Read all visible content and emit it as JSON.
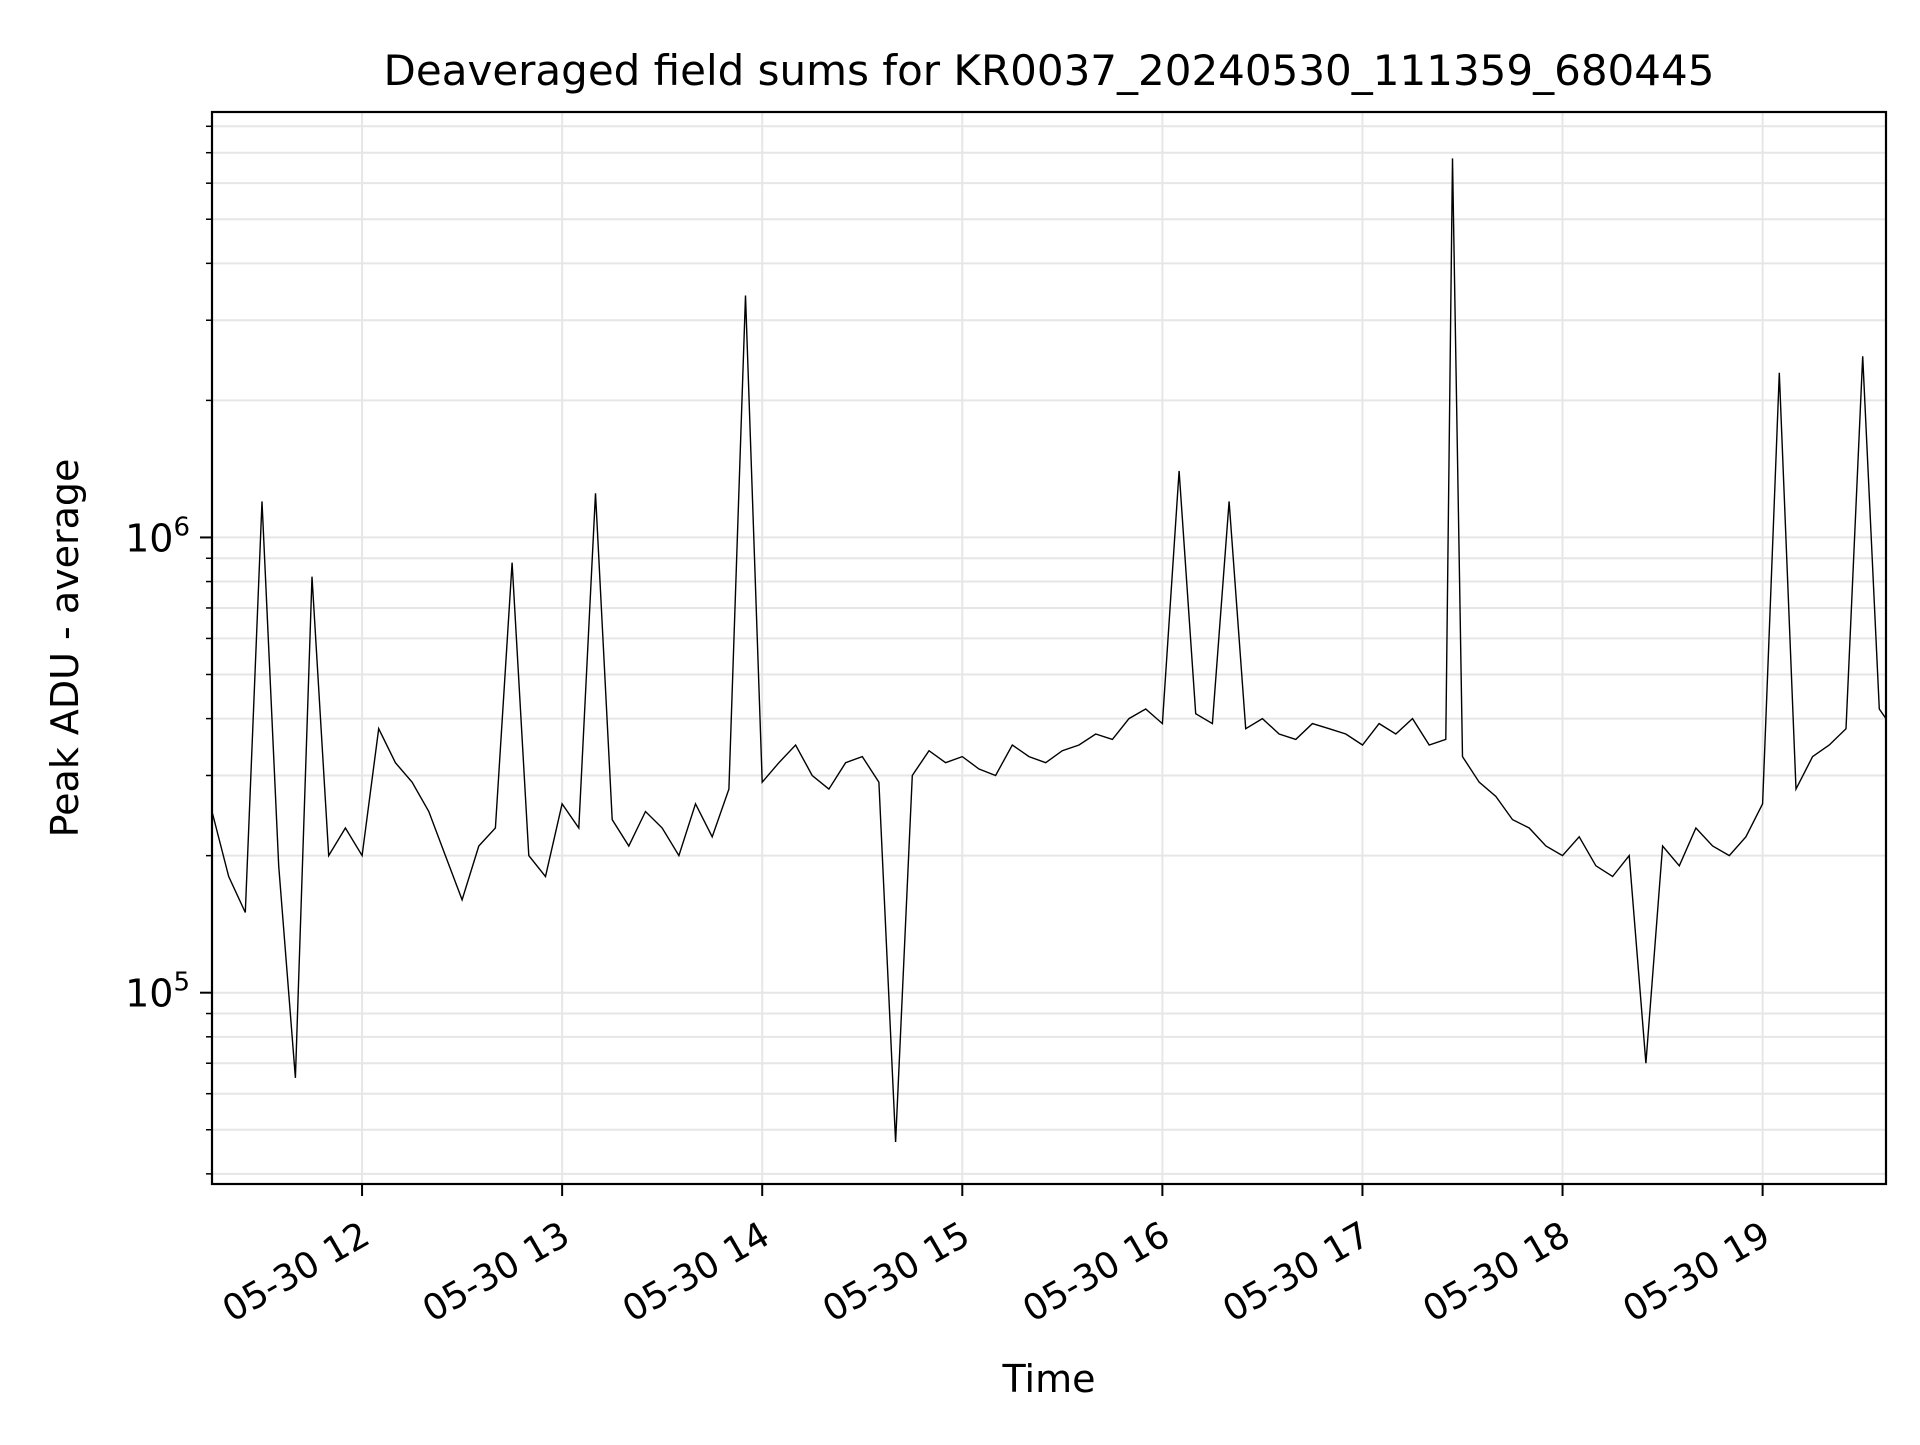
{
  "chart_data": {
    "type": "line",
    "title": "Deaveraged field sums for KR0037_20240530_111359_680445",
    "xlabel": "Time",
    "ylabel": "Peak ADU - average",
    "y_scale": "log",
    "ylim": [
      38000,
      8600000
    ],
    "y_major_ticks": [
      {
        "value": 100000,
        "base": "10",
        "exp": "5"
      },
      {
        "value": 1000000,
        "base": "10",
        "exp": "6"
      }
    ],
    "xlim": [
      "2024-05-30 11:15",
      "2024-05-30 19:37"
    ],
    "x_ticks": [
      {
        "value": "2024-05-30 12:00",
        "label": "05-30 12"
      },
      {
        "value": "2024-05-30 13:00",
        "label": "05-30 13"
      },
      {
        "value": "2024-05-30 14:00",
        "label": "05-30 14"
      },
      {
        "value": "2024-05-30 15:00",
        "label": "05-30 15"
      },
      {
        "value": "2024-05-30 16:00",
        "label": "05-30 16"
      },
      {
        "value": "2024-05-30 17:00",
        "label": "05-30 17"
      },
      {
        "value": "2024-05-30 18:00",
        "label": "05-30 18"
      },
      {
        "value": "2024-05-30 19:00",
        "label": "05-30 19"
      }
    ],
    "grid": true,
    "line_color": "#000000",
    "grid_color": "#e6e6e6",
    "series": [
      {
        "points": [
          [
            "2024-05-30 11:15",
            250000
          ],
          [
            "2024-05-30 11:20",
            180000
          ],
          [
            "2024-05-30 11:25",
            150000
          ],
          [
            "2024-05-30 11:30",
            1200000
          ],
          [
            "2024-05-30 11:35",
            190000
          ],
          [
            "2024-05-30 11:40",
            65000
          ],
          [
            "2024-05-30 11:45",
            820000
          ],
          [
            "2024-05-30 11:50",
            200000
          ],
          [
            "2024-05-30 11:55",
            230000
          ],
          [
            "2024-05-30 12:00",
            200000
          ],
          [
            "2024-05-30 12:05",
            380000
          ],
          [
            "2024-05-30 12:10",
            320000
          ],
          [
            "2024-05-30 12:15",
            290000
          ],
          [
            "2024-05-30 12:20",
            250000
          ],
          [
            "2024-05-30 12:25",
            200000
          ],
          [
            "2024-05-30 12:30",
            160000
          ],
          [
            "2024-05-30 12:35",
            210000
          ],
          [
            "2024-05-30 12:40",
            230000
          ],
          [
            "2024-05-30 12:45",
            880000
          ],
          [
            "2024-05-30 12:50",
            200000
          ],
          [
            "2024-05-30 12:55",
            180000
          ],
          [
            "2024-05-30 13:00",
            260000
          ],
          [
            "2024-05-30 13:05",
            230000
          ],
          [
            "2024-05-30 13:10",
            1250000
          ],
          [
            "2024-05-30 13:15",
            240000
          ],
          [
            "2024-05-30 13:20",
            210000
          ],
          [
            "2024-05-30 13:25",
            250000
          ],
          [
            "2024-05-30 13:30",
            230000
          ],
          [
            "2024-05-30 13:35",
            200000
          ],
          [
            "2024-05-30 13:40",
            260000
          ],
          [
            "2024-05-30 13:45",
            220000
          ],
          [
            "2024-05-30 13:50",
            280000
          ],
          [
            "2024-05-30 13:55",
            3400000
          ],
          [
            "2024-05-30 14:00",
            290000
          ],
          [
            "2024-05-30 14:05",
            320000
          ],
          [
            "2024-05-30 14:10",
            350000
          ],
          [
            "2024-05-30 14:15",
            300000
          ],
          [
            "2024-05-30 14:20",
            280000
          ],
          [
            "2024-05-30 14:25",
            320000
          ],
          [
            "2024-05-30 14:30",
            330000
          ],
          [
            "2024-05-30 14:35",
            290000
          ],
          [
            "2024-05-30 14:40",
            47000
          ],
          [
            "2024-05-30 14:45",
            300000
          ],
          [
            "2024-05-30 14:50",
            340000
          ],
          [
            "2024-05-30 14:55",
            320000
          ],
          [
            "2024-05-30 15:00",
            330000
          ],
          [
            "2024-05-30 15:05",
            310000
          ],
          [
            "2024-05-30 15:10",
            300000
          ],
          [
            "2024-05-30 15:15",
            350000
          ],
          [
            "2024-05-30 15:20",
            330000
          ],
          [
            "2024-05-30 15:25",
            320000
          ],
          [
            "2024-05-30 15:30",
            340000
          ],
          [
            "2024-05-30 15:35",
            350000
          ],
          [
            "2024-05-30 15:40",
            370000
          ],
          [
            "2024-05-30 15:45",
            360000
          ],
          [
            "2024-05-30 15:50",
            400000
          ],
          [
            "2024-05-30 15:55",
            420000
          ],
          [
            "2024-05-30 16:00",
            390000
          ],
          [
            "2024-05-30 16:05",
            1400000
          ],
          [
            "2024-05-30 16:10",
            410000
          ],
          [
            "2024-05-30 16:15",
            390000
          ],
          [
            "2024-05-30 16:20",
            1200000
          ],
          [
            "2024-05-30 16:25",
            380000
          ],
          [
            "2024-05-30 16:30",
            400000
          ],
          [
            "2024-05-30 16:35",
            370000
          ],
          [
            "2024-05-30 16:40",
            360000
          ],
          [
            "2024-05-30 16:45",
            390000
          ],
          [
            "2024-05-30 16:50",
            380000
          ],
          [
            "2024-05-30 16:55",
            370000
          ],
          [
            "2024-05-30 17:00",
            350000
          ],
          [
            "2024-05-30 17:05",
            390000
          ],
          [
            "2024-05-30 17:10",
            370000
          ],
          [
            "2024-05-30 17:15",
            400000
          ],
          [
            "2024-05-30 17:20",
            350000
          ],
          [
            "2024-05-30 17:25",
            360000
          ],
          [
            "2024-05-30 17:27",
            6800000
          ],
          [
            "2024-05-30 17:30",
            330000
          ],
          [
            "2024-05-30 17:35",
            290000
          ],
          [
            "2024-05-30 17:40",
            270000
          ],
          [
            "2024-05-30 17:45",
            240000
          ],
          [
            "2024-05-30 17:50",
            230000
          ],
          [
            "2024-05-30 17:55",
            210000
          ],
          [
            "2024-05-30 18:00",
            200000
          ],
          [
            "2024-05-30 18:05",
            220000
          ],
          [
            "2024-05-30 18:10",
            190000
          ],
          [
            "2024-05-30 18:15",
            180000
          ],
          [
            "2024-05-30 18:20",
            200000
          ],
          [
            "2024-05-30 18:25",
            70000
          ],
          [
            "2024-05-30 18:30",
            210000
          ],
          [
            "2024-05-30 18:35",
            190000
          ],
          [
            "2024-05-30 18:40",
            230000
          ],
          [
            "2024-05-30 18:45",
            210000
          ],
          [
            "2024-05-30 18:50",
            200000
          ],
          [
            "2024-05-30 18:55",
            220000
          ],
          [
            "2024-05-30 19:00",
            260000
          ],
          [
            "2024-05-30 19:05",
            2300000
          ],
          [
            "2024-05-30 19:10",
            280000
          ],
          [
            "2024-05-30 19:15",
            330000
          ],
          [
            "2024-05-30 19:20",
            350000
          ],
          [
            "2024-05-30 19:25",
            380000
          ],
          [
            "2024-05-30 19:30",
            2500000
          ],
          [
            "2024-05-30 19:35",
            420000
          ],
          [
            "2024-05-30 19:37",
            400000
          ]
        ]
      }
    ]
  }
}
